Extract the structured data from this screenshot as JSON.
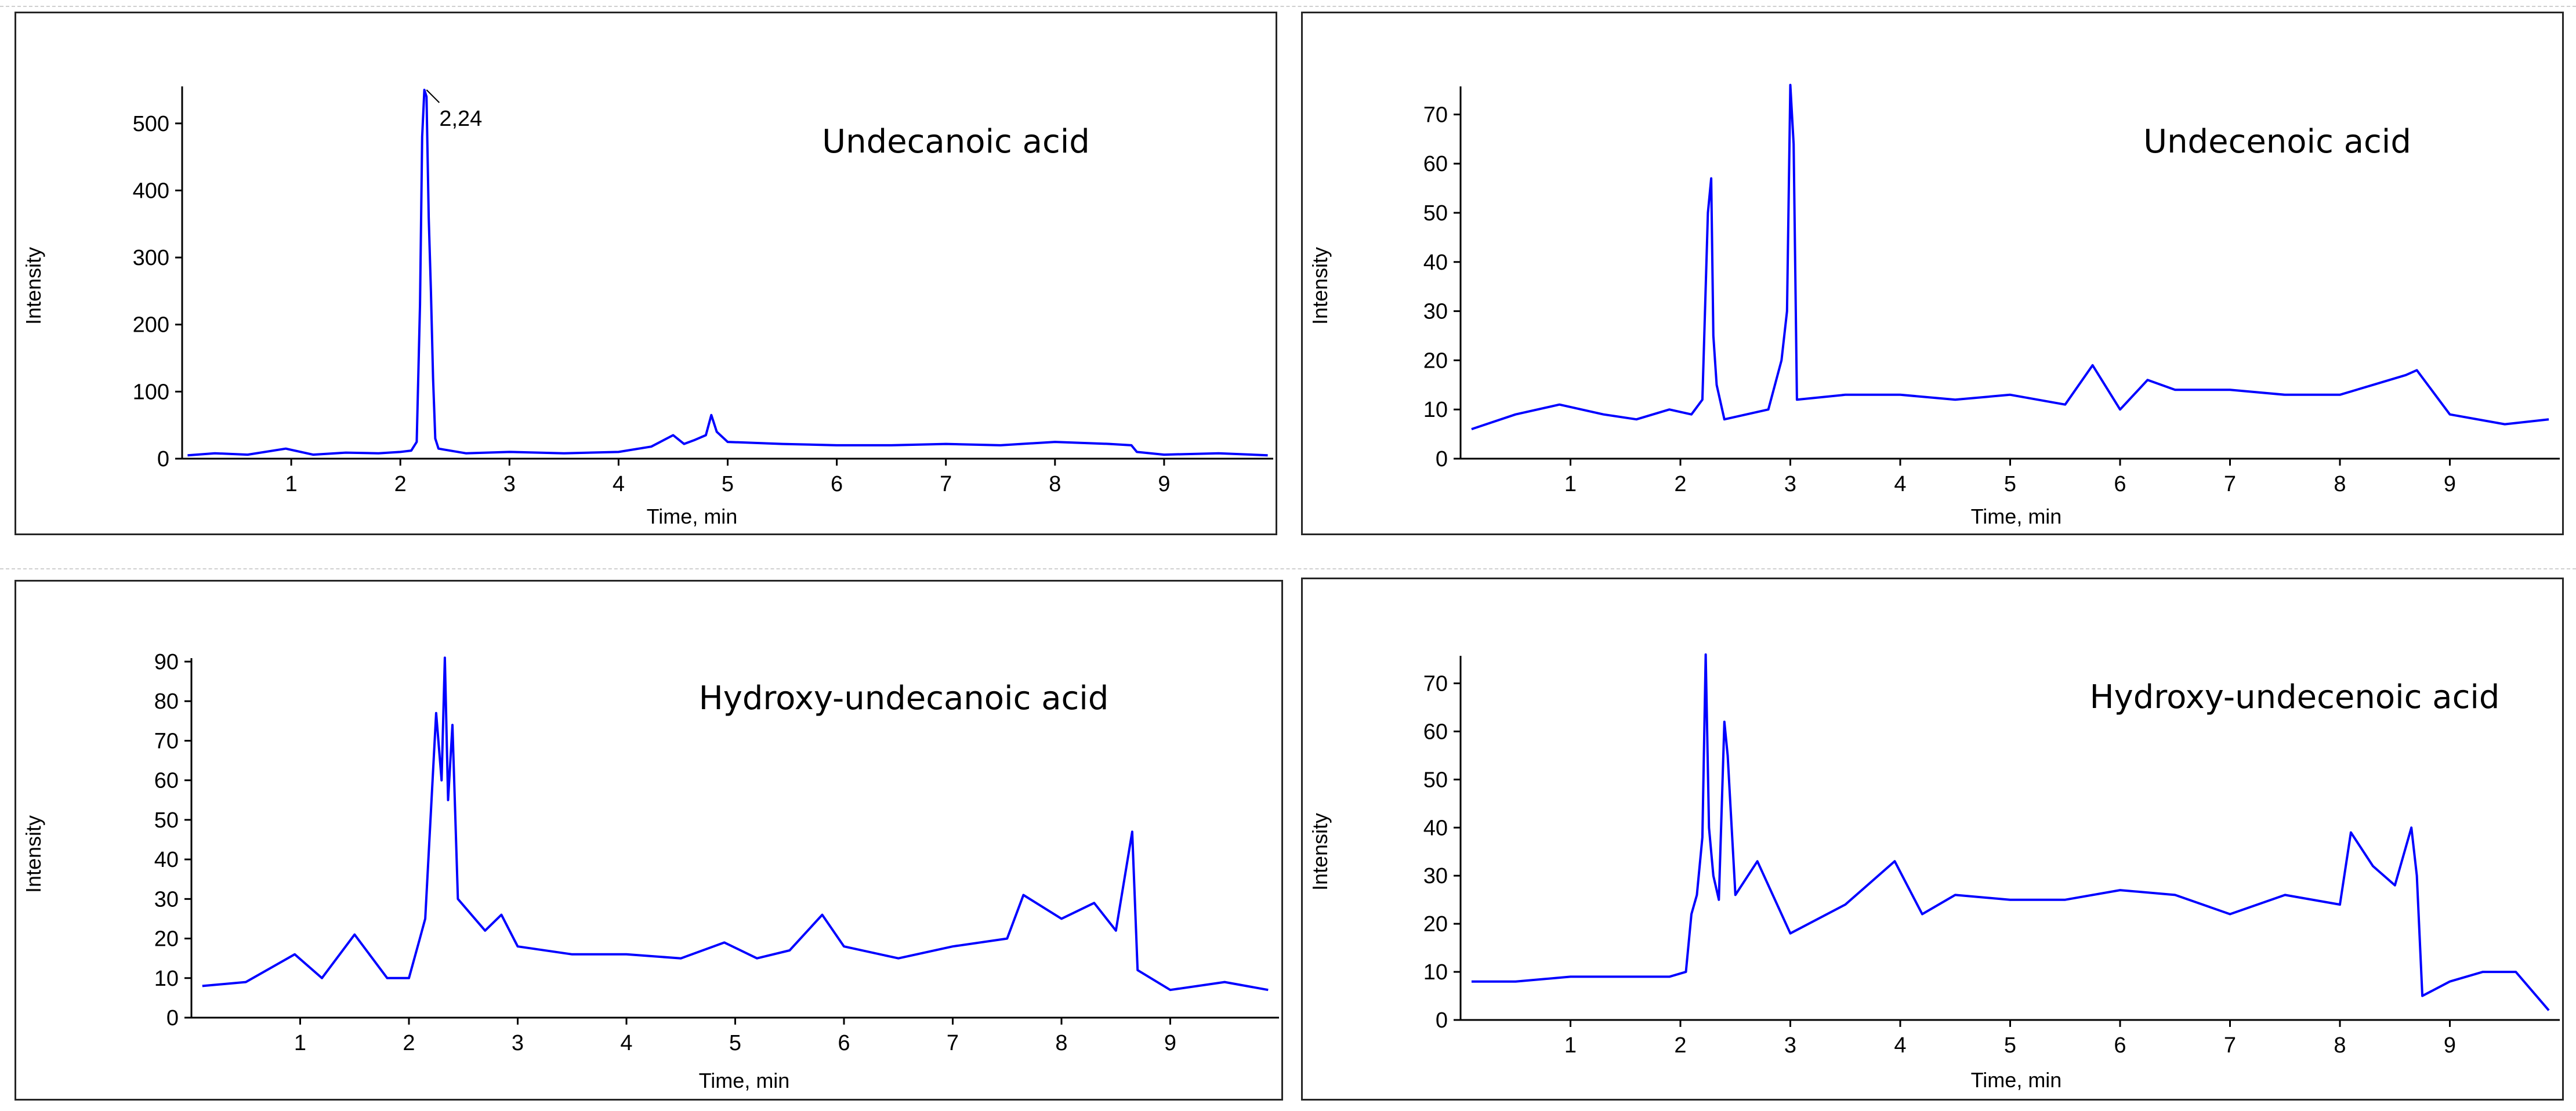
{
  "chart_data": [
    {
      "type": "line",
      "title": "Undecanoic acid",
      "xlabel": "Time, min",
      "ylabel": "Intensity",
      "xlim": [
        0,
        10
      ],
      "ylim": [
        0,
        550
      ],
      "xticks": [
        1,
        2,
        3,
        4,
        5,
        6,
        7,
        8,
        9
      ],
      "yticks": [
        0,
        100,
        200,
        300,
        400,
        500
      ],
      "annotations": [
        {
          "text": "2,24",
          "x": 2.24,
          "y": 550
        }
      ],
      "color": "#0000ff",
      "grid": false,
      "points": [
        [
          0.05,
          5
        ],
        [
          0.3,
          8
        ],
        [
          0.6,
          6
        ],
        [
          0.95,
          15
        ],
        [
          1.2,
          6
        ],
        [
          1.5,
          9
        ],
        [
          1.8,
          8
        ],
        [
          2.0,
          10
        ],
        [
          2.1,
          12
        ],
        [
          2.15,
          25
        ],
        [
          2.18,
          230
        ],
        [
          2.2,
          480
        ],
        [
          2.22,
          550
        ],
        [
          2.24,
          540
        ],
        [
          2.26,
          360
        ],
        [
          2.28,
          250
        ],
        [
          2.3,
          120
        ],
        [
          2.32,
          30
        ],
        [
          2.35,
          15
        ],
        [
          2.6,
          8
        ],
        [
          3.0,
          10
        ],
        [
          3.5,
          8
        ],
        [
          4.0,
          10
        ],
        [
          4.3,
          18
        ],
        [
          4.5,
          35
        ],
        [
          4.6,
          22
        ],
        [
          4.7,
          28
        ],
        [
          4.8,
          35
        ],
        [
          4.85,
          65
        ],
        [
          4.9,
          40
        ],
        [
          5.0,
          25
        ],
        [
          5.5,
          22
        ],
        [
          6.0,
          20
        ],
        [
          6.5,
          20
        ],
        [
          7.0,
          22
        ],
        [
          7.5,
          20
        ],
        [
          8.0,
          25
        ],
        [
          8.5,
          22
        ],
        [
          8.7,
          20
        ],
        [
          8.75,
          10
        ],
        [
          9.0,
          6
        ],
        [
          9.5,
          8
        ],
        [
          9.95,
          5
        ]
      ]
    },
    {
      "type": "line",
      "title": "Undecenoic acid",
      "xlabel": "Time, min",
      "ylabel": "Intensity",
      "xlim": [
        0,
        10
      ],
      "ylim": [
        0,
        75
      ],
      "xticks": [
        1,
        2,
        3,
        4,
        5,
        6,
        7,
        8,
        9
      ],
      "yticks": [
        0,
        10,
        20,
        30,
        40,
        50,
        60,
        70
      ],
      "color": "#0000ff",
      "grid": false,
      "points": [
        [
          0.1,
          6
        ],
        [
          0.5,
          9
        ],
        [
          0.9,
          11
        ],
        [
          1.3,
          9
        ],
        [
          1.6,
          8
        ],
        [
          1.9,
          10
        ],
        [
          2.1,
          9
        ],
        [
          2.2,
          12
        ],
        [
          2.25,
          50
        ],
        [
          2.28,
          57
        ],
        [
          2.3,
          25
        ],
        [
          2.33,
          15
        ],
        [
          2.4,
          8
        ],
        [
          2.8,
          10
        ],
        [
          2.92,
          20
        ],
        [
          2.97,
          30
        ],
        [
          3.0,
          76
        ],
        [
          3.03,
          64
        ],
        [
          3.06,
          12
        ],
        [
          3.5,
          13
        ],
        [
          4.0,
          13
        ],
        [
          4.5,
          12
        ],
        [
          5.0,
          13
        ],
        [
          5.5,
          11
        ],
        [
          5.75,
          19
        ],
        [
          6.0,
          10
        ],
        [
          6.25,
          16
        ],
        [
          6.5,
          14
        ],
        [
          7.0,
          14
        ],
        [
          7.5,
          13
        ],
        [
          8.0,
          13
        ],
        [
          8.3,
          15
        ],
        [
          8.6,
          17
        ],
        [
          8.7,
          18
        ],
        [
          9.0,
          9
        ],
        [
          9.5,
          7
        ],
        [
          9.9,
          8
        ]
      ]
    },
    {
      "type": "line",
      "title": "Hydroxy-undecanoic acid",
      "xlabel": "Time, min",
      "ylabel": "Intensity",
      "xlim": [
        0,
        10
      ],
      "ylim": [
        0,
        90
      ],
      "xticks": [
        1,
        2,
        3,
        4,
        5,
        6,
        7,
        8,
        9
      ],
      "yticks": [
        0,
        10,
        20,
        30,
        40,
        50,
        60,
        70,
        80,
        90
      ],
      "color": "#0000ff",
      "grid": false,
      "points": [
        [
          0.1,
          8
        ],
        [
          0.5,
          9
        ],
        [
          0.95,
          16
        ],
        [
          1.2,
          10
        ],
        [
          1.5,
          21
        ],
        [
          1.8,
          10
        ],
        [
          2.0,
          10
        ],
        [
          2.1,
          20
        ],
        [
          2.15,
          25
        ],
        [
          2.25,
          77
        ],
        [
          2.3,
          60
        ],
        [
          2.33,
          91
        ],
        [
          2.36,
          55
        ],
        [
          2.4,
          74
        ],
        [
          2.45,
          30
        ],
        [
          2.7,
          22
        ],
        [
          2.85,
          26
        ],
        [
          3.0,
          18
        ],
        [
          3.5,
          16
        ],
        [
          4.0,
          16
        ],
        [
          4.5,
          15
        ],
        [
          4.9,
          19
        ],
        [
          5.2,
          15
        ],
        [
          5.5,
          17
        ],
        [
          5.8,
          26
        ],
        [
          6.0,
          18
        ],
        [
          6.5,
          15
        ],
        [
          7.0,
          18
        ],
        [
          7.5,
          20
        ],
        [
          7.65,
          31
        ],
        [
          8.0,
          25
        ],
        [
          8.3,
          29
        ],
        [
          8.5,
          22
        ],
        [
          8.65,
          47
        ],
        [
          8.7,
          12
        ],
        [
          9.0,
          7
        ],
        [
          9.5,
          9
        ],
        [
          9.9,
          7
        ]
      ]
    },
    {
      "type": "line",
      "title": "Hydroxy-undecenoic acid",
      "xlabel": "Time, min",
      "ylabel": "Intensity",
      "xlim": [
        0,
        10
      ],
      "ylim": [
        0,
        75
      ],
      "xticks": [
        1,
        2,
        3,
        4,
        5,
        6,
        7,
        8,
        9
      ],
      "yticks": [
        0,
        10,
        20,
        30,
        40,
        50,
        60,
        70
      ],
      "color": "#0000ff",
      "grid": false,
      "points": [
        [
          0.1,
          8
        ],
        [
          0.5,
          8
        ],
        [
          1.0,
          9
        ],
        [
          1.5,
          9
        ],
        [
          1.9,
          9
        ],
        [
          2.05,
          10
        ],
        [
          2.1,
          22
        ],
        [
          2.15,
          26
        ],
        [
          2.2,
          38
        ],
        [
          2.23,
          76
        ],
        [
          2.26,
          40
        ],
        [
          2.3,
          30
        ],
        [
          2.35,
          25
        ],
        [
          2.4,
          62
        ],
        [
          2.43,
          55
        ],
        [
          2.5,
          26
        ],
        [
          2.7,
          33
        ],
        [
          3.0,
          18
        ],
        [
          3.5,
          24
        ],
        [
          3.95,
          33
        ],
        [
          4.2,
          22
        ],
        [
          4.5,
          26
        ],
        [
          5.0,
          25
        ],
        [
          5.5,
          25
        ],
        [
          6.0,
          27
        ],
        [
          6.5,
          26
        ],
        [
          7.0,
          22
        ],
        [
          7.5,
          26
        ],
        [
          8.0,
          24
        ],
        [
          8.1,
          39
        ],
        [
          8.3,
          32
        ],
        [
          8.5,
          28
        ],
        [
          8.65,
          40
        ],
        [
          8.7,
          30
        ],
        [
          8.75,
          5
        ],
        [
          9.0,
          8
        ],
        [
          9.3,
          10
        ],
        [
          9.6,
          10
        ],
        [
          9.9,
          2
        ]
      ]
    }
  ]
}
